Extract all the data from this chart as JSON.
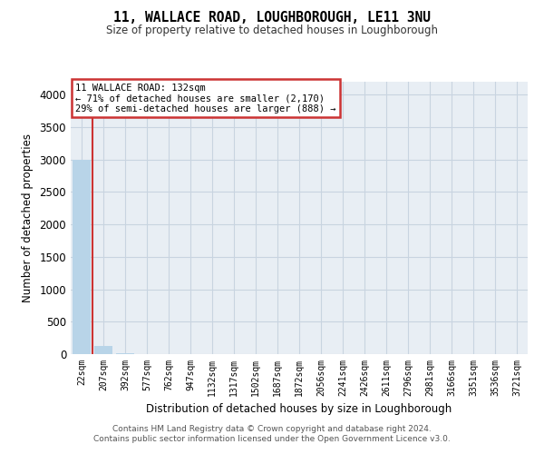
{
  "title": "11, WALLACE ROAD, LOUGHBOROUGH, LE11 3NU",
  "subtitle": "Size of property relative to detached houses in Loughborough",
  "xlabel": "Distribution of detached houses by size in Loughborough",
  "ylabel": "Number of detached properties",
  "footer_line1": "Contains HM Land Registry data © Crown copyright and database right 2024.",
  "footer_line2": "Contains public sector information licensed under the Open Government Licence v3.0.",
  "annotation_line1": "11 WALLACE ROAD: 132sqm",
  "annotation_line2": "← 71% of detached houses are smaller (2,170)",
  "annotation_line3": "29% of semi-detached houses are larger (888) →",
  "bar_color": "#b8d4e8",
  "highlight_color": "#cc3333",
  "grid_color": "#c8d4e0",
  "background_color": "#e8eef4",
  "annotation_box_color": "#ffffff",
  "annotation_box_edge": "#cc3333",
  "categories": [
    "22sqm",
    "207sqm",
    "392sqm",
    "577sqm",
    "762sqm",
    "947sqm",
    "1132sqm",
    "1317sqm",
    "1502sqm",
    "1687sqm",
    "1872sqm",
    "2056sqm",
    "2241sqm",
    "2426sqm",
    "2611sqm",
    "2796sqm",
    "2981sqm",
    "3166sqm",
    "3351sqm",
    "3536sqm",
    "3721sqm"
  ],
  "values": [
    3000,
    120,
    8,
    4,
    2,
    1,
    1,
    0,
    0,
    0,
    0,
    0,
    0,
    0,
    0,
    0,
    0,
    0,
    0,
    0,
    0
  ],
  "ylim": [
    0,
    4200
  ],
  "yticks": [
    0,
    500,
    1000,
    1500,
    2000,
    2500,
    3000,
    3500,
    4000
  ],
  "red_line_x": 0.5,
  "figsize": [
    6.0,
    5.0
  ],
  "dpi": 100
}
